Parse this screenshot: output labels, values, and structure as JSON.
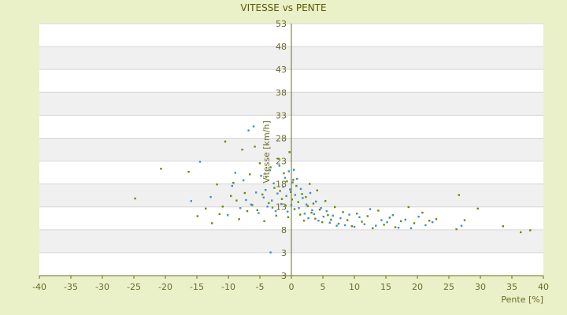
{
  "chart_data": {
    "type": "scatter",
    "title": "VITESSE vs PENTE",
    "xlabel": "Pente [%]",
    "ylabel": "Vitesse [km/h]",
    "xlim": [
      -40,
      40
    ],
    "ylim": [
      3,
      53
    ],
    "x_ticks": [
      "-40",
      "-35",
      "-30",
      "-25",
      "-20",
      "-15",
      "-10",
      "-5",
      "0",
      "5",
      "10",
      "15",
      "20",
      "25",
      "30",
      "35",
      "40"
    ],
    "y_ticks": [
      "3",
      "3",
      "8",
      "13",
      "18",
      "23",
      "28",
      "33",
      "38",
      "43",
      "48",
      "53"
    ],
    "grid": true,
    "series": [
      {
        "color": "#6a8a00",
        "points": [
          [
            -24.8,
            18.3
          ],
          [
            -20.7,
            24.2
          ],
          [
            -16.3,
            23.6
          ],
          [
            -14.9,
            14.8
          ],
          [
            -13.6,
            16.3
          ],
          [
            -12.6,
            13.4
          ],
          [
            -11.8,
            21.1
          ],
          [
            -11.4,
            15.2
          ],
          [
            -10.9,
            16.7
          ],
          [
            -10.5,
            29.6
          ],
          [
            -9.6,
            18.8
          ],
          [
            -9.2,
            21.4
          ],
          [
            -8.7,
            17.9
          ],
          [
            -8.3,
            14.2
          ],
          [
            -7.8,
            28.0
          ],
          [
            -7.4,
            19.4
          ],
          [
            -7.0,
            15.8
          ],
          [
            -6.6,
            23.1
          ],
          [
            -6.2,
            17.0
          ],
          [
            -5.8,
            28.6
          ],
          [
            -5.4,
            16.0
          ],
          [
            -5.0,
            25.3
          ],
          [
            -4.6,
            19.1
          ],
          [
            -4.3,
            13.8
          ],
          [
            -4.0,
            22.6
          ],
          [
            -3.6,
            17.4
          ],
          [
            -3.3,
            24.5
          ],
          [
            -3.0,
            16.5
          ],
          [
            -2.7,
            20.4
          ],
          [
            -2.4,
            14.9
          ],
          [
            -2.1,
            26.2
          ],
          [
            -1.8,
            19.8
          ],
          [
            -1.5,
            18.2
          ],
          [
            -1.2,
            23.3
          ],
          [
            -0.9,
            16.9
          ],
          [
            -0.7,
            21.7
          ],
          [
            -0.5,
            14.6
          ],
          [
            -0.3,
            27.5
          ],
          [
            -0.1,
            19.6
          ],
          [
            0.1,
            18.1
          ],
          [
            0.3,
            22.0
          ],
          [
            0.5,
            16.2
          ],
          [
            0.8,
            20.8
          ],
          [
            1.1,
            17.6
          ],
          [
            1.4,
            15.1
          ],
          [
            1.7,
            19.2
          ],
          [
            2.0,
            13.9
          ],
          [
            2.3,
            18.6
          ],
          [
            2.6,
            16.8
          ],
          [
            2.9,
            21.2
          ],
          [
            3.2,
            15.5
          ],
          [
            3.5,
            17.3
          ],
          [
            3.8,
            14.3
          ],
          [
            4.1,
            19.9
          ],
          [
            4.5,
            16.1
          ],
          [
            4.9,
            13.6
          ],
          [
            5.4,
            17.8
          ],
          [
            5.8,
            15.0
          ],
          [
            6.3,
            14.1
          ],
          [
            6.9,
            16.6
          ],
          [
            7.5,
            13.3
          ],
          [
            8.2,
            15.6
          ],
          [
            8.9,
            14.0
          ],
          [
            9.6,
            12.8
          ],
          [
            10.4,
            15.3
          ],
          [
            11.2,
            13.7
          ],
          [
            12.1,
            14.8
          ],
          [
            12.9,
            12.4
          ],
          [
            13.8,
            15.9
          ],
          [
            14.7,
            13.1
          ],
          [
            15.6,
            14.5
          ],
          [
            16.5,
            12.6
          ],
          [
            17.4,
            13.8
          ],
          [
            18.6,
            16.6
          ],
          [
            19.5,
            13.4
          ],
          [
            20.8,
            15.5
          ],
          [
            21.9,
            13.9
          ],
          [
            23.0,
            14.2
          ],
          [
            26.2,
            12.2
          ],
          [
            26.6,
            19.0
          ],
          [
            27.5,
            14.0
          ],
          [
            29.6,
            16.3
          ],
          [
            33.6,
            12.8
          ],
          [
            36.4,
            11.6
          ],
          [
            37.9,
            12.0
          ]
        ]
      },
      {
        "color": "#3a8fd0",
        "points": [
          [
            -15.9,
            17.8
          ],
          [
            -14.5,
            25.6
          ],
          [
            -12.8,
            18.6
          ],
          [
            -10.1,
            15.0
          ],
          [
            -9.4,
            20.8
          ],
          [
            -8.9,
            23.4
          ],
          [
            -8.1,
            16.4
          ],
          [
            -7.6,
            21.9
          ],
          [
            -7.2,
            18.0
          ],
          [
            -6.8,
            31.8
          ],
          [
            -6.4,
            17.1
          ],
          [
            -6.0,
            32.6
          ],
          [
            -5.6,
            19.5
          ],
          [
            -5.2,
            15.4
          ],
          [
            -4.8,
            22.8
          ],
          [
            -4.4,
            18.5
          ],
          [
            -4.1,
            20.0
          ],
          [
            -3.8,
            16.7
          ],
          [
            -3.4,
            23.9
          ],
          [
            -3.1,
            17.9
          ],
          [
            -2.8,
            21.3
          ],
          [
            -2.5,
            15.8
          ],
          [
            -2.2,
            19.3
          ],
          [
            -1.9,
            24.8
          ],
          [
            -1.6,
            17.2
          ],
          [
            -1.3,
            20.6
          ],
          [
            -1.0,
            22.4
          ],
          [
            -0.8,
            18.8
          ],
          [
            -0.6,
            15.7
          ],
          [
            -0.4,
            23.7
          ],
          [
            -0.2,
            20.1
          ],
          [
            0.0,
            17.0
          ],
          [
            0.2,
            21.5
          ],
          [
            0.4,
            24.0
          ],
          [
            0.6,
            19.0
          ],
          [
            0.9,
            22.2
          ],
          [
            1.2,
            16.4
          ],
          [
            1.5,
            20.2
          ],
          [
            1.8,
            18.4
          ],
          [
            2.1,
            15.3
          ],
          [
            2.4,
            17.1
          ],
          [
            2.7,
            14.4
          ],
          [
            3.0,
            19.4
          ],
          [
            3.3,
            16.0
          ],
          [
            3.6,
            15.2
          ],
          [
            3.9,
            17.7
          ],
          [
            4.3,
            13.9
          ],
          [
            4.7,
            16.4
          ],
          [
            5.1,
            14.7
          ],
          [
            5.6,
            15.8
          ],
          [
            6.1,
            13.5
          ],
          [
            6.6,
            14.9
          ],
          [
            7.2,
            12.9
          ],
          [
            7.8,
            14.4
          ],
          [
            8.5,
            13.0
          ],
          [
            9.2,
            15.1
          ],
          [
            10.0,
            12.7
          ],
          [
            10.8,
            14.6
          ],
          [
            11.6,
            13.2
          ],
          [
            12.5,
            16.2
          ],
          [
            13.4,
            12.9
          ],
          [
            14.3,
            14.0
          ],
          [
            15.2,
            13.6
          ],
          [
            16.1,
            15.0
          ],
          [
            17.0,
            12.5
          ],
          [
            18.1,
            14.1
          ],
          [
            19.0,
            12.4
          ],
          [
            20.2,
            14.7
          ],
          [
            21.3,
            13.0
          ],
          [
            22.4,
            13.6
          ],
          [
            27.0,
            12.9
          ],
          [
            -3.3,
            7.6
          ]
        ]
      }
    ]
  }
}
